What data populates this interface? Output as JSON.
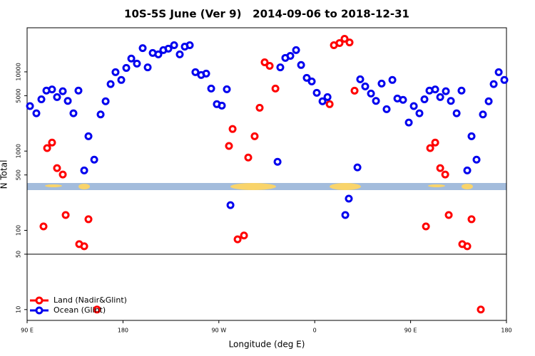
{
  "chart_data": {
    "type": "scatter",
    "title": "10S-5S June (Ver 9)   2014-09-06 to 2018-12-31",
    "x_label": "Longitude (deg E)",
    "y_label": "N Total",
    "xlim": [
      90,
      540
    ],
    "ylim": [
      7.3,
      36000
    ],
    "y_scale": "log",
    "xticks": [
      {
        "value": 90,
        "label": "90 E"
      },
      180,
      {
        "value": 270,
        "label": "90 W"
      },
      {
        "value": 360,
        "label": "0"
      },
      {
        "value": 450,
        "label": "90 E"
      },
      {
        "value": 540,
        "label": "180"
      }
    ],
    "yticks": [
      10,
      50,
      100,
      500,
      1000,
      5000,
      10000
    ],
    "hline": 50,
    "legend": "lower left",
    "series": [
      {
        "name": "Land (Nadir&Glint)",
        "color": "#ff0000",
        "x": [
          105.4,
          108.8,
          113.4,
          118.1,
          123.5,
          126.2,
          138.9,
          143.6,
          147.6,
          155.6,
          279.5,
          282.9,
          287.6,
          293.6,
          297.6,
          303.6,
          308.3,
          313.0,
          317.7,
          323.1,
          374.0,
          378.0,
          383.3,
          388.0,
          392.7,
          397.4,
          464.4,
          468.4,
          473.1,
          477.8,
          482.5,
          485.8,
          498.5,
          503.2,
          507.2,
          515.9
        ],
        "values": [
          112,
          1090,
          1280,
          610,
          506,
          156,
          67,
          63,
          138,
          10,
          1160,
          1900,
          77,
          86,
          830,
          1540,
          3520,
          13200,
          11900,
          6150,
          3910,
          21700,
          23100,
          26100,
          23500,
          5780,
          112,
          1090,
          1280,
          610,
          506,
          156,
          67,
          63,
          138,
          10
        ]
      },
      {
        "name": "Ocean (Glint)",
        "color": "#0000ee",
        "x": [
          92.7,
          98.7,
          103.4,
          108.1,
          113.4,
          118.1,
          123.5,
          128.2,
          133.5,
          138.2,
          143.6,
          147.6,
          153.0,
          159.0,
          163.7,
          168.4,
          173.0,
          178.4,
          183.1,
          187.8,
          193.1,
          198.5,
          203.2,
          207.9,
          213.2,
          217.9,
          222.6,
          228.0,
          233.3,
          238.0,
          242.7,
          248.0,
          253.4,
          258.1,
          262.8,
          268.1,
          272.8,
          277.5,
          280.9,
          325.1,
          327.7,
          332.4,
          337.1,
          342.5,
          347.2,
          352.5,
          357.2,
          361.9,
          367.3,
          372.0,
          388.7,
          392.0,
          400.1,
          402.7,
          407.4,
          412.8,
          417.5,
          422.8,
          427.5,
          432.9,
          437.6,
          442.9,
          448.3,
          453.0,
          458.3,
          463.0,
          467.7,
          473.1,
          477.8,
          483.1,
          487.8,
          493.2,
          497.8,
          503.2,
          507.2,
          511.9,
          517.9,
          523.3,
          528.0,
          532.7,
          538.0
        ],
        "values": [
          3700,
          3000,
          4500,
          5800,
          6000,
          4800,
          5700,
          4300,
          3000,
          5800,
          570,
          1540,
          780,
          2900,
          4250,
          7000,
          9900,
          7900,
          11200,
          14700,
          12700,
          19900,
          11400,
          17300,
          16600,
          18800,
          19600,
          21700,
          16600,
          20800,
          21700,
          9900,
          9120,
          9500,
          6150,
          3910,
          3750,
          6030,
          208,
          733,
          11400,
          15000,
          15900,
          18800,
          12200,
          8390,
          7570,
          5440,
          4250,
          4800,
          156,
          251,
          622,
          8050,
          6550,
          5320,
          4300,
          7110,
          3380,
          7900,
          4610,
          4430,
          2290,
          3700,
          3000,
          4500,
          5800,
          6000,
          4800,
          5700,
          4300,
          3000,
          5800,
          570,
          1540,
          780,
          2900,
          4250,
          7000,
          9900,
          7900
        ]
      }
    ]
  }
}
